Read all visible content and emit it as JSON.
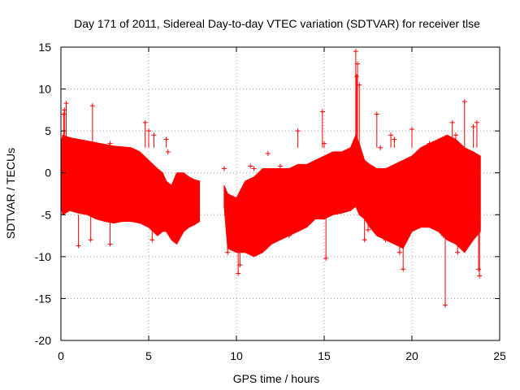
{
  "chart_data": {
    "type": "scatter",
    "title": "Day 171 of 2011, Sidereal Day-to-day VTEC variation (SDTVAR) for receiver tlse",
    "xlabel": "GPS time / hours",
    "ylabel": "SDTVAR / TECUs",
    "xlim": [
      0,
      25
    ],
    "ylim": [
      -20,
      15
    ],
    "xticks": [
      0,
      5,
      10,
      15,
      20,
      25
    ],
    "yticks": [
      -20,
      -15,
      -10,
      -5,
      0,
      5,
      10,
      15
    ],
    "grid": true,
    "marker": "+",
    "color": "#ff0000",
    "series": [
      {
        "name": "SDTVAR",
        "envelope": {
          "x": [
            0.0,
            0.1,
            0.5,
            1.0,
            1.5,
            2.0,
            2.5,
            3.0,
            3.5,
            4.0,
            4.5,
            5.0,
            5.5,
            5.8,
            6.0,
            6.3,
            6.6,
            7.0,
            7.3,
            7.6,
            7.9
          ],
          "upper": [
            3.5,
            4.5,
            4.2,
            4.0,
            3.8,
            3.6,
            3.4,
            3.2,
            3.1,
            3.0,
            2.5,
            1.5,
            0.5,
            0.0,
            -1.0,
            -1.5,
            0.0,
            0.0,
            -0.5,
            -0.8,
            -1.0
          ],
          "lower": [
            -4.0,
            -5.0,
            -4.5,
            -4.8,
            -5.0,
            -5.5,
            -5.8,
            -6.0,
            -5.8,
            -5.8,
            -6.0,
            -6.5,
            -7.5,
            -7.0,
            -7.0,
            -8.0,
            -8.5,
            -7.0,
            -6.5,
            -6.2,
            -5.8
          ]
        },
        "envelope2": {
          "x": [
            9.3,
            9.5,
            10.0,
            10.5,
            11.0,
            11.5,
            12.0,
            12.5,
            13.0,
            13.5,
            14.0,
            14.5,
            15.0,
            15.5,
            16.0,
            16.5,
            16.8,
            17.0,
            17.3,
            17.6,
            18.0,
            18.5,
            19.0,
            19.5,
            20.0,
            20.5,
            21.0,
            21.5,
            22.0,
            22.5,
            23.0,
            23.5,
            23.9
          ],
          "upper": [
            -1.5,
            -2.5,
            -3.0,
            -1.0,
            -0.5,
            0.5,
            0.5,
            0.5,
            0.5,
            1.0,
            1.0,
            1.5,
            2.0,
            2.5,
            2.5,
            3.0,
            4.5,
            3.5,
            1.5,
            1.0,
            0.5,
            0.5,
            1.0,
            1.5,
            2.0,
            3.0,
            3.5,
            4.0,
            4.5,
            4.0,
            3.0,
            2.5,
            2.0
          ],
          "lower": [
            -4.0,
            -9.0,
            -9.5,
            -9.5,
            -10.0,
            -9.5,
            -8.5,
            -8.0,
            -7.5,
            -7.0,
            -6.5,
            -5.5,
            -5.5,
            -5.0,
            -4.8,
            -4.5,
            -4.0,
            -5.0,
            -5.5,
            -6.5,
            -7.5,
            -8.0,
            -8.5,
            -9.0,
            -7.0,
            -6.5,
            -6.5,
            -7.0,
            -8.0,
            -8.5,
            -9.5,
            -8.0,
            -7.0
          ]
        },
        "outliers": {
          "x": [
            0.2,
            0.3,
            0.15,
            1.8,
            1.7,
            1.0,
            2.8,
            2.8,
            4.8,
            5.0,
            5.3,
            6.0,
            6.1,
            5.2,
            9.5,
            9.3,
            10.1,
            10.2,
            10.8,
            11.0,
            11.8,
            12.5,
            13.0,
            13.4,
            13.5,
            14.9,
            15.0,
            15.1,
            16.8,
            16.9,
            17.0,
            16.85,
            17.3,
            17.5,
            18.0,
            18.2,
            18.5,
            18.8,
            19.0,
            19.3,
            19.5,
            20.0,
            21.0,
            21.5,
            21.8,
            21.9,
            22.3,
            22.5,
            22.6,
            23.0,
            23.5,
            23.7,
            23.8,
            23.85
          ],
          "y": [
            7.5,
            8.3,
            7.0,
            8.0,
            -8.0,
            -8.7,
            3.5,
            -8.5,
            6.0,
            5.0,
            4.5,
            4.0,
            2.5,
            -8.0,
            -9.5,
            0.5,
            -12.0,
            -11.0,
            0.8,
            0.5,
            2.3,
            0.8,
            -7.5,
            -6.2,
            5.0,
            7.3,
            3.5,
            -10.2,
            14.5,
            13.0,
            10.5,
            11.5,
            -8.0,
            -6.8,
            7.0,
            3.0,
            -8.0,
            4.5,
            4.0,
            -9.5,
            -11.5,
            5.2,
            3.5,
            -6.5,
            -7.5,
            -15.8,
            6.0,
            4.5,
            -9.5,
            8.5,
            5.5,
            6.0,
            -11.5,
            -12.3
          ]
        }
      }
    ]
  }
}
